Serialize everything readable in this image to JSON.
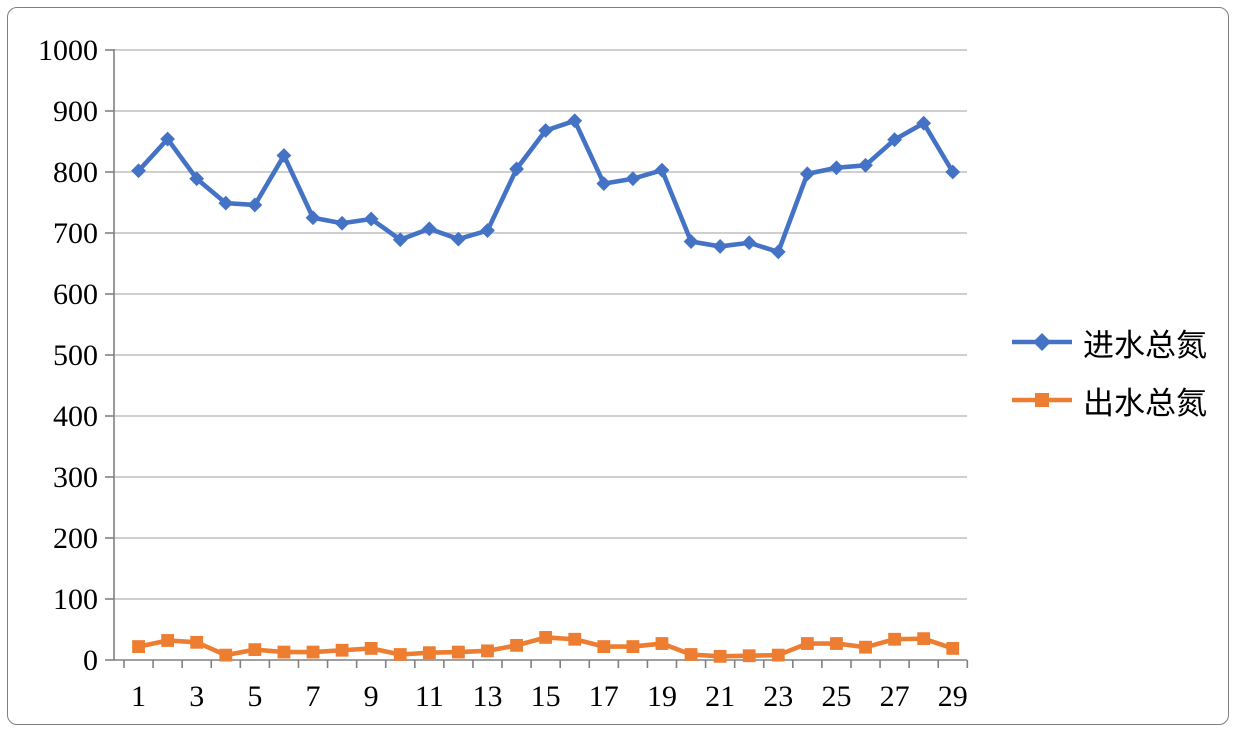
{
  "colors": {
    "series_inflow": "#4472C4",
    "series_outflow": "#ED7D31",
    "gridline": "#BFBFBF",
    "axis": "#808080",
    "frame_border": "#7F7F7F",
    "text": "#000000",
    "background": "#FFFFFF"
  },
  "chart_data": {
    "type": "line",
    "title": "",
    "xlabel": "",
    "ylabel": "",
    "grid": "horizontal",
    "legend_position": "right",
    "ylim": [
      0,
      1000
    ],
    "y_ticks": [
      0,
      100,
      200,
      300,
      400,
      500,
      600,
      700,
      800,
      900,
      1000
    ],
    "x": [
      1,
      2,
      3,
      4,
      5,
      6,
      7,
      8,
      9,
      10,
      11,
      12,
      13,
      14,
      15,
      16,
      17,
      18,
      19,
      20,
      21,
      22,
      23,
      24,
      25,
      26,
      27,
      28,
      29
    ],
    "x_tick_labels_shown": [
      "1",
      "3",
      "5",
      "7",
      "9",
      "11",
      "13",
      "15",
      "17",
      "19",
      "21",
      "23",
      "25",
      "27",
      "29"
    ],
    "series": [
      {
        "name": "进水总氮",
        "color": "#4472C4",
        "marker": "diamond",
        "values": [
          802,
          854,
          789,
          749,
          746,
          827,
          725,
          716,
          723,
          689,
          707,
          690,
          704,
          805,
          868,
          884,
          781,
          789,
          803,
          686,
          678,
          684,
          669,
          797,
          807,
          811,
          853,
          880,
          800
        ]
      },
      {
        "name": "出水总氮",
        "color": "#ED7D31",
        "marker": "square",
        "values": [
          22,
          32,
          29,
          8,
          17,
          13,
          13,
          16,
          19,
          9,
          12,
          13,
          15,
          24,
          37,
          34,
          22,
          22,
          27,
          9,
          6,
          7,
          8,
          27,
          27,
          21,
          34,
          35,
          19
        ]
      }
    ]
  }
}
